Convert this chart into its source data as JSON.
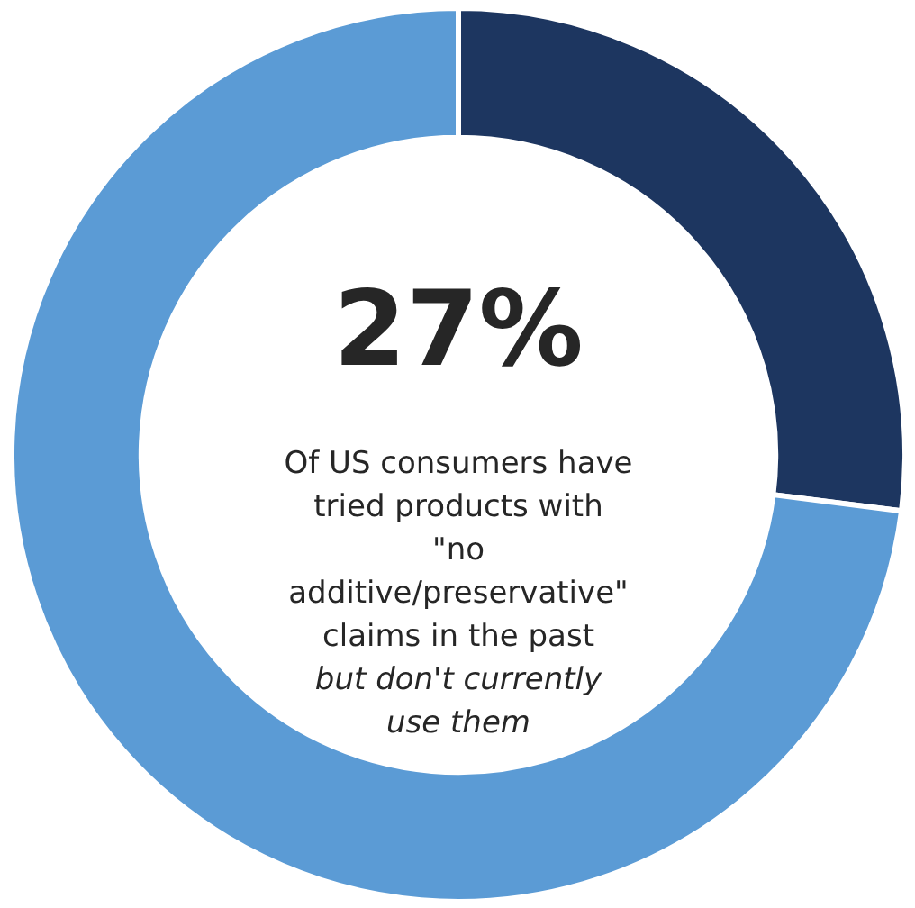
{
  "chart_data": {
    "type": "donut",
    "categories": [
      null,
      null
    ],
    "values": [
      27,
      73
    ],
    "colors": [
      "#1d3660",
      "#5b9bd5"
    ],
    "annotations": [
      "27%",
      "Of US consumers have tried products with \"no additive/preservative\" claims in the past",
      "but don't currently use them"
    ]
  }
}
